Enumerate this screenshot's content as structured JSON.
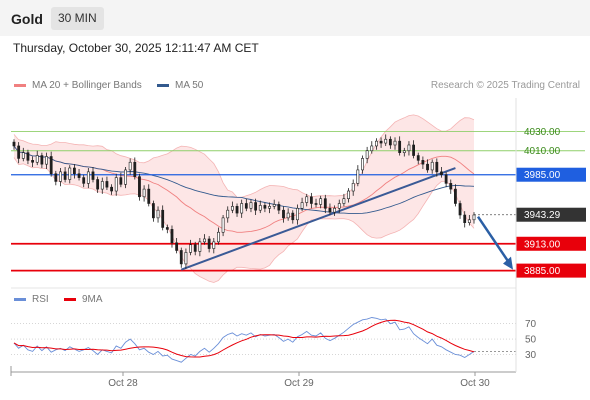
{
  "header": {
    "instrument": "Gold",
    "timeframe": "30 MIN",
    "datetime": "Thursday, October 30, 2025 12:11:47 AM CET",
    "copyright": "Research © 2025 Trading Central"
  },
  "legend": {
    "bollinger_label": "MA 20 + Bollinger Bands",
    "ma50_label": "MA 50",
    "rsi_label": "RSI",
    "rsi_ma_label": "9MA"
  },
  "colors": {
    "bollinger": "#f08080",
    "bollinger_fill": "#fde3e3",
    "ma50": "#335a8e",
    "support": "#e8000b",
    "pivot": "#1f5fe0",
    "resistance": "#8fcf6a",
    "candle": "#1e1e1e",
    "trendline": "#3a5a96",
    "rsi": "#6a8fd8",
    "rsi_ma": "#e8000b",
    "current_price_bg": "#333333"
  },
  "chart_data": [
    {
      "type": "candlestick",
      "title": "Gold",
      "timeframe": "30 MIN",
      "x_tick_labels": [
        "Oct 28",
        "Oct 29",
        "Oct 30"
      ],
      "ylim": [
        3870,
        4065
      ],
      "current_price": 3943.29,
      "levels": [
        {
          "value": 4030.0,
          "label": "4030.00",
          "kind": "resistance"
        },
        {
          "value": 4010.0,
          "label": "4010.00",
          "kind": "resistance"
        },
        {
          "value": 3985.0,
          "label": "3985.00",
          "kind": "pivot"
        },
        {
          "value": 3913.0,
          "label": "3913.00",
          "kind": "support"
        },
        {
          "value": 3885.0,
          "label": "3885.00",
          "kind": "support"
        }
      ],
      "current_price_label": "3943.29",
      "close_series": [
        4015,
        4002,
        4008,
        4000,
        3998,
        4005,
        3996,
        4004,
        3986,
        3978,
        3988,
        3980,
        3992,
        3986,
        3982,
        3976,
        3988,
        3980,
        3970,
        3978,
        3972,
        3968,
        3982,
        3975,
        3990,
        3998,
        3983,
        3962,
        3970,
        3955,
        3940,
        3948,
        3930,
        3928,
        3914,
        3906,
        3892,
        3904,
        3912,
        3905,
        3915,
        3918,
        3908,
        3915,
        3925,
        3940,
        3948,
        3952,
        3945,
        3955,
        3950,
        3956,
        3948,
        3953,
        3950,
        3952,
        3954,
        3948,
        3940,
        3945,
        3938,
        3950,
        3956,
        3962,
        3955,
        3954,
        3960,
        3950,
        3946,
        3950,
        3955,
        3960,
        3968,
        3976,
        3990,
        4002,
        4010,
        4015,
        4020,
        4018,
        4022,
        4016,
        4020,
        4008,
        4010,
        4016,
        4005,
        4000,
        3996,
        3990,
        3998,
        3988,
        3985,
        3976,
        3970,
        3955,
        3943,
        3935,
        3938,
        3943
      ]
    },
    {
      "type": "line",
      "title": "RSI",
      "series": [
        {
          "name": "RSI"
        },
        {
          "name": "9MA"
        }
      ],
      "y_tick_labels": [
        "70",
        "50",
        "30"
      ],
      "ylim": [
        15,
        80
      ],
      "rsi_values": [
        45,
        38,
        42,
        36,
        34,
        41,
        35,
        40,
        33,
        36,
        38,
        35,
        40,
        37,
        34,
        36,
        39,
        35,
        30,
        36,
        34,
        32,
        41,
        38,
        46,
        50,
        44,
        36,
        38,
        33,
        30,
        34,
        28,
        29,
        24,
        22,
        20,
        25,
        30,
        28,
        34,
        38,
        33,
        38,
        44,
        52,
        56,
        58,
        54,
        57,
        55,
        58,
        53,
        56,
        54,
        55,
        56,
        52,
        47,
        50,
        46,
        53,
        56,
        60,
        55,
        54,
        58,
        51,
        48,
        51,
        55,
        59,
        64,
        69,
        72,
        75,
        76,
        78,
        77,
        75,
        76,
        70,
        72,
        62,
        63,
        66,
        57,
        52,
        48,
        44,
        50,
        42,
        40,
        36,
        33,
        30,
        29,
        26,
        30,
        34
      ]
    }
  ]
}
